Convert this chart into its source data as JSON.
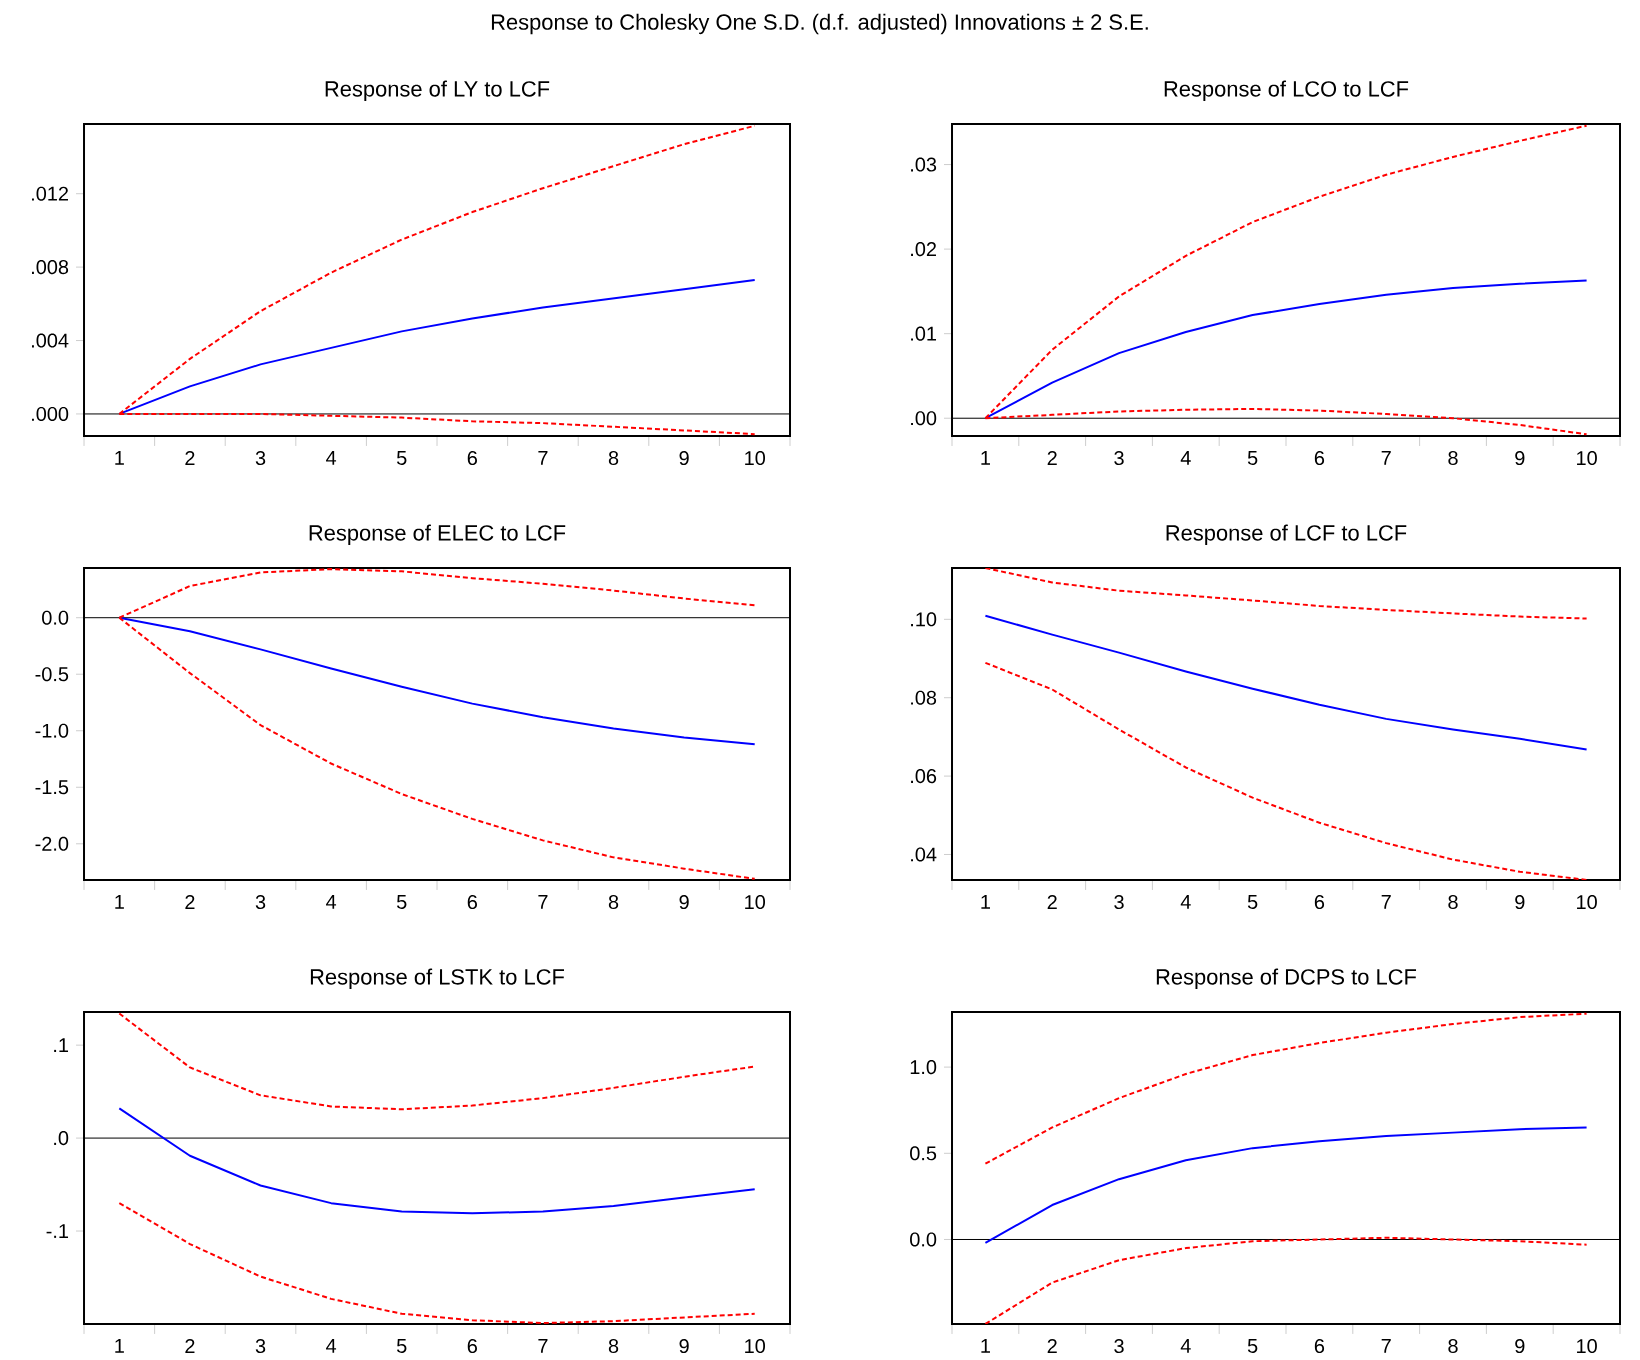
{
  "chart_data": [
    {
      "type": "line",
      "title": "Response of LY to LCF",
      "annotations": [
        "Response to Cholesky One S.D. (d.f. adjusted) Innovations ± 2 S.E."
      ],
      "categories": [
        "1",
        "2",
        "3",
        "4",
        "5",
        "6",
        "7",
        "8",
        "9",
        "10"
      ],
      "ylim": [
        -0.0012,
        0.0158
      ],
      "yticks": [
        {
          "value": 0,
          "label": ".000"
        },
        {
          "value": 0.004,
          "label": ".004"
        },
        {
          "value": 0.008,
          "label": ".008"
        },
        {
          "value": 0.012,
          "label": ".012"
        }
      ],
      "ref_lines": [
        {
          "axis": "y",
          "value": 0,
          "color": "#000000"
        }
      ],
      "series": [
        {
          "color": "#0000ff",
          "line_style": "solid",
          "values": [
            0,
            0.0015,
            0.0027,
            0.0036,
            0.0045,
            0.0052,
            0.0058,
            0.0063,
            0.0068,
            0.0073
          ]
        },
        {
          "color": "#ff0000",
          "line_style": "dashed",
          "values": [
            0,
            0.003,
            0.0056,
            0.0077,
            0.0095,
            0.011,
            0.0123,
            0.0135,
            0.0147,
            0.0157
          ]
        },
        {
          "color": "#ff0000",
          "line_style": "dashed",
          "values": [
            0,
            0,
            0,
            -0.0001,
            -0.0002,
            -0.0004,
            -0.0005,
            -0.0007,
            -0.0009,
            -0.0011
          ]
        }
      ]
    },
    {
      "type": "line",
      "title": "Response of LCO to LCF",
      "categories": [
        "1",
        "2",
        "3",
        "4",
        "5",
        "6",
        "7",
        "8",
        "9",
        "10"
      ],
      "ylim": [
        -0.0021,
        0.0348
      ],
      "yticks": [
        {
          "value": 0,
          "label": ".00"
        },
        {
          "value": 0.01,
          "label": ".01"
        },
        {
          "value": 0.02,
          "label": ".02"
        },
        {
          "value": 0.03,
          "label": ".03"
        }
      ],
      "ref_lines": [
        {
          "axis": "y",
          "value": 0,
          "color": "#000000"
        }
      ],
      "series": [
        {
          "color": "#0000ff",
          "line_style": "solid",
          "values": [
            0,
            0.0042,
            0.0077,
            0.0102,
            0.0122,
            0.0135,
            0.0146,
            0.0154,
            0.0159,
            0.0163
          ]
        },
        {
          "color": "#ff0000",
          "line_style": "dashed",
          "values": [
            0,
            0.0081,
            0.0144,
            0.0192,
            0.0232,
            0.0262,
            0.0288,
            0.0309,
            0.0328,
            0.0346
          ]
        },
        {
          "color": "#ff0000",
          "line_style": "dashed",
          "values": [
            0,
            0.0004,
            0.0008,
            0.001,
            0.0011,
            0.0009,
            0.0005,
            0,
            -0.0008,
            -0.0019
          ]
        }
      ]
    },
    {
      "type": "line",
      "title": "Response of ELEC to LCF",
      "categories": [
        "1",
        "2",
        "3",
        "4",
        "5",
        "6",
        "7",
        "8",
        "9",
        "10"
      ],
      "ylim": [
        -2.32,
        0.44
      ],
      "yticks": [
        {
          "value": -2.0,
          "label": "-2.0"
        },
        {
          "value": -1.5,
          "label": "-1.5"
        },
        {
          "value": -1.0,
          "label": "-1.0"
        },
        {
          "value": -0.5,
          "label": "-0.5"
        },
        {
          "value": 0,
          "label": "0.0"
        }
      ],
      "ref_lines": [
        {
          "axis": "y",
          "value": 0,
          "color": "#000000"
        }
      ],
      "series": [
        {
          "color": "#0000ff",
          "line_style": "solid",
          "values": [
            0,
            -0.12,
            -0.28,
            -0.45,
            -0.61,
            -0.76,
            -0.88,
            -0.98,
            -1.06,
            -1.12
          ]
        },
        {
          "color": "#ff0000",
          "line_style": "dashed",
          "values": [
            0,
            0.28,
            0.4,
            0.43,
            0.41,
            0.35,
            0.3,
            0.24,
            0.17,
            0.11
          ]
        },
        {
          "color": "#ff0000",
          "line_style": "dashed",
          "values": [
            0,
            -0.49,
            -0.95,
            -1.29,
            -1.56,
            -1.78,
            -1.97,
            -2.12,
            -2.22,
            -2.31
          ]
        }
      ]
    },
    {
      "type": "line",
      "title": "Response of LCF to LCF",
      "categories": [
        "1",
        "2",
        "3",
        "4",
        "5",
        "6",
        "7",
        "8",
        "9",
        "10"
      ],
      "ylim": [
        0.0335,
        0.1131
      ],
      "yticks": [
        {
          "value": 0.04,
          "label": ".04"
        },
        {
          "value": 0.06,
          "label": ".06"
        },
        {
          "value": 0.08,
          "label": ".08"
        },
        {
          "value": 0.1,
          "label": ".10"
        }
      ],
      "series": [
        {
          "color": "#0000ff",
          "line_style": "solid",
          "values": [
            0.1009,
            0.0961,
            0.0915,
            0.0867,
            0.0823,
            0.0782,
            0.0746,
            0.0719,
            0.0695,
            0.0668
          ]
        },
        {
          "color": "#ff0000",
          "line_style": "dashed",
          "values": [
            0.1131,
            0.1094,
            0.1073,
            0.1061,
            0.1048,
            0.1034,
            0.1024,
            0.1015,
            0.1007,
            0.1002
          ]
        },
        {
          "color": "#ff0000",
          "line_style": "dashed",
          "values": [
            0.0889,
            0.0821,
            0.0719,
            0.0622,
            0.0545,
            0.0481,
            0.0429,
            0.0387,
            0.0356,
            0.0335
          ]
        }
      ]
    },
    {
      "type": "line",
      "title": "Response of LSTK to LCF",
      "categories": [
        "1",
        "2",
        "3",
        "4",
        "5",
        "6",
        "7",
        "8",
        "9",
        "10"
      ],
      "ylim": [
        -0.2,
        0.1357
      ],
      "yticks": [
        {
          "value": -0.1,
          "label": "-.1"
        },
        {
          "value": 0,
          "label": ".0"
        },
        {
          "value": 0.1,
          "label": ".1"
        }
      ],
      "ref_lines": [
        {
          "axis": "y",
          "value": 0,
          "color": "#000000"
        }
      ],
      "series": [
        {
          "color": "#0000ff",
          "line_style": "solid",
          "values": [
            0.032,
            -0.019,
            -0.051,
            -0.07,
            -0.079,
            -0.081,
            -0.079,
            -0.073,
            -0.064,
            -0.055
          ]
        },
        {
          "color": "#ff0000",
          "line_style": "dashed",
          "values": [
            0.134,
            0.076,
            0.046,
            0.034,
            0.031,
            0.035,
            0.043,
            0.054,
            0.066,
            0.077
          ]
        },
        {
          "color": "#ff0000",
          "line_style": "dashed",
          "values": [
            -0.07,
            -0.114,
            -0.149,
            -0.173,
            -0.189,
            -0.196,
            -0.199,
            -0.197,
            -0.193,
            -0.189
          ]
        }
      ]
    },
    {
      "type": "line",
      "title": "Response of DCPS to LCF",
      "categories": [
        "1",
        "2",
        "3",
        "4",
        "5",
        "6",
        "7",
        "8",
        "9",
        "10"
      ],
      "ylim": [
        -0.49,
        1.32
      ],
      "yticks": [
        {
          "value": 0,
          "label": "0.0"
        },
        {
          "value": 0.5,
          "label": "0.5"
        },
        {
          "value": 1.0,
          "label": "1.0"
        }
      ],
      "ref_lines": [
        {
          "axis": "y",
          "value": 0,
          "color": "#000000"
        }
      ],
      "series": [
        {
          "color": "#0000ff",
          "line_style": "solid",
          "values": [
            -0.02,
            0.2,
            0.35,
            0.46,
            0.53,
            0.57,
            0.6,
            0.62,
            0.64,
            0.65
          ]
        },
        {
          "color": "#ff0000",
          "line_style": "dashed",
          "values": [
            0.44,
            0.65,
            0.82,
            0.96,
            1.07,
            1.14,
            1.2,
            1.25,
            1.29,
            1.31
          ]
        },
        {
          "color": "#ff0000",
          "line_style": "dashed",
          "values": [
            -0.49,
            -0.25,
            -0.12,
            -0.05,
            -0.01,
            0,
            0.01,
            0,
            -0.01,
            -0.03
          ]
        }
      ]
    }
  ]
}
